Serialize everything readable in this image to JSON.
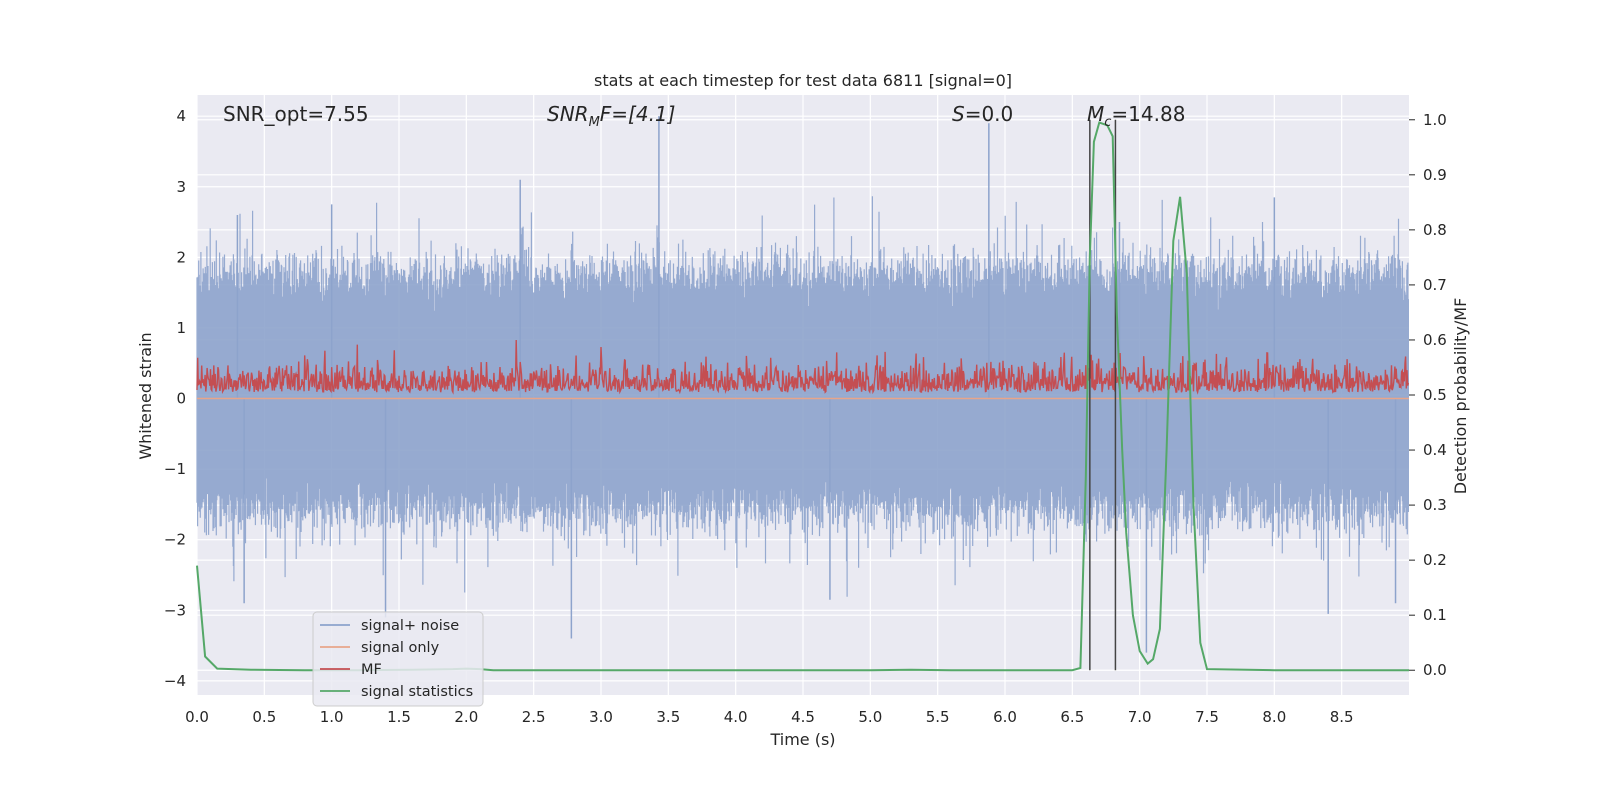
{
  "chart_data": {
    "type": "line",
    "title": "stats at each timestep for test data 6811 [signal=0]",
    "xlabel": "Time (s)",
    "ylabel": "Whitened strain",
    "ylabel_right": "Detection probability/MF",
    "xlim": [
      0,
      9.0
    ],
    "ylim": [
      -4.2,
      4.3
    ],
    "ylim_right": [
      -0.045,
      1.045
    ],
    "x_ticks": [
      "0.0",
      "0.5",
      "1.0",
      "1.5",
      "2.0",
      "2.5",
      "3.0",
      "3.5",
      "4.0",
      "4.5",
      "5.0",
      "5.5",
      "6.0",
      "6.5",
      "7.0",
      "7.5",
      "8.0",
      "8.5"
    ],
    "y_ticks": [
      "4",
      "3",
      "2",
      "1",
      "0",
      "−1",
      "−2",
      "−3",
      "−4"
    ],
    "y_right_ticks": [
      "1.0",
      "0.9",
      "0.8",
      "0.7",
      "0.6",
      "0.5",
      "0.4",
      "0.3",
      "0.2",
      "0.1",
      "0.0"
    ],
    "grid": true,
    "legend_position": "lower-left",
    "annotations": {
      "snr_opt": "SNR_opt=7.55",
      "snr_mf_base": "SNR",
      "snr_mf_sub": "M",
      "snr_mf_rest": "F=[4.1]",
      "s_var": "S",
      "s_rest": "=0.0",
      "mc_var": "M",
      "mc_sub": "c",
      "mc_rest": "=14.88"
    },
    "vertical_lines_x": [
      6.63,
      6.82
    ],
    "series": [
      {
        "name": "signal+ noise",
        "color": "#8da3cc",
        "axis": "left",
        "style": "dense noise",
        "band_top_typical": 1.7,
        "band_bottom_typical": -1.5,
        "peaks": [
          [
            0.3,
            2.6
          ],
          [
            1.0,
            2.75
          ],
          [
            2.4,
            3.1
          ],
          [
            3.43,
            4.0
          ],
          [
            5.88,
            3.9
          ],
          [
            6.85,
            2.5
          ],
          [
            8.0,
            2.85
          ]
        ],
        "troughs": [
          [
            0.35,
            -2.9
          ],
          [
            1.4,
            -3.1
          ],
          [
            2.78,
            -3.4
          ],
          [
            4.7,
            -2.85
          ],
          [
            7.05,
            -3.6
          ],
          [
            8.4,
            -3.05
          ],
          [
            8.9,
            -2.9
          ]
        ]
      },
      {
        "name": "signal only",
        "color": "#e8a58a",
        "axis": "left",
        "values_constant": 0.0
      },
      {
        "name": "MF",
        "color": "#c44e52",
        "axis": "right",
        "band_low": 0.5,
        "band_high_typical": 0.59,
        "max": 0.645
      },
      {
        "name": "signal statistics",
        "color": "#55a868",
        "axis": "right",
        "x": [
          0,
          0.06,
          0.15,
          0.4,
          0.8,
          1.2,
          1.6,
          1.9,
          2.0,
          2.1,
          2.2,
          2.5,
          3.0,
          4.0,
          5.0,
          5.3,
          5.6,
          6.0,
          6.5,
          6.56,
          6.6,
          6.63,
          6.66,
          6.7,
          6.76,
          6.8,
          6.83,
          6.87,
          6.9,
          6.95,
          7.0,
          7.06,
          7.1,
          7.15,
          7.2,
          7.25,
          7.3,
          7.35,
          7.4,
          7.45,
          7.5,
          8.0,
          8.5,
          9.0
        ],
        "values": [
          0.19,
          0.025,
          0.003,
          0.001,
          0.0,
          0.0,
          0.001,
          0.002,
          0.003,
          0.002,
          0.0,
          0.0,
          0.0,
          0.0,
          0.0,
          0.001,
          0.0,
          0.0,
          0.0,
          0.004,
          0.35,
          0.75,
          0.96,
          0.995,
          0.99,
          0.97,
          0.65,
          0.4,
          0.25,
          0.1,
          0.035,
          0.012,
          0.02,
          0.075,
          0.4,
          0.78,
          0.86,
          0.72,
          0.3,
          0.05,
          0.002,
          0.0,
          0.0,
          0.0
        ]
      }
    ]
  }
}
